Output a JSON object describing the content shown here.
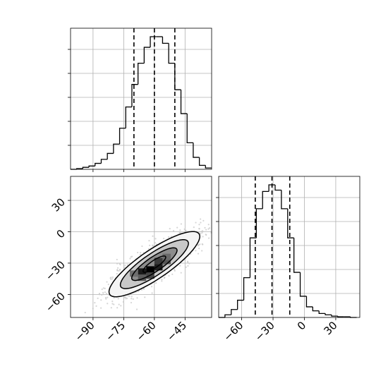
{
  "chart_data": [
    {
      "type": "histogram",
      "panel": "top-left",
      "x_tick_labels_shown": false,
      "xlim": [
        -101,
        -32
      ],
      "x_grid": [
        -90,
        -75,
        -60,
        -45
      ],
      "grid": true,
      "bin_edges": [
        -101,
        -98,
        -95,
        -92,
        -89,
        -86,
        -83,
        -80,
        -77,
        -74,
        -71,
        -68,
        -65,
        -62,
        -59,
        -56,
        -53,
        -50,
        -47,
        -44,
        -41,
        -38,
        -35,
        -32
      ],
      "counts": [
        0.0,
        0.005,
        0.015,
        0.025,
        0.045,
        0.075,
        0.12,
        0.19,
        0.31,
        0.47,
        0.64,
        0.8,
        0.92,
        1.0,
        1.0,
        0.95,
        0.8,
        0.6,
        0.42,
        0.2,
        0.09,
        0.03,
        0.01
      ],
      "quantiles": [
        -70,
        -60,
        -50
      ],
      "quantile_style": "dashed"
    },
    {
      "type": "scatter",
      "panel": "bottom-left",
      "subtype": "2d-histogram-with-contours",
      "xlim": [
        -101,
        -32
      ],
      "ylim": [
        -82,
        53
      ],
      "x_ticks": [
        "−90",
        "−75",
        "−60",
        "−45"
      ],
      "y_ticks": [
        "30",
        "0",
        "−30",
        "−60"
      ],
      "x_tick_values": [
        -90,
        -75,
        -60,
        -45
      ],
      "y_tick_values": [
        30,
        0,
        -30,
        -60
      ],
      "grid": true,
      "center": [
        -60,
        -31
      ],
      "contour_levels": 4,
      "points_color": "#c8c8c8",
      "density_colormap": [
        "#ffffff",
        "#b4b4b4",
        "#6e6e6e",
        "#000000"
      ]
    },
    {
      "type": "histogram",
      "panel": "bottom-right",
      "xlim": [
        -82,
        53
      ],
      "x_ticks": [
        "−60",
        "−30",
        "0",
        "30"
      ],
      "x_tick_values": [
        -60,
        -30,
        0,
        30
      ],
      "grid": true,
      "bin_edges": [
        -82,
        -76,
        -70,
        -64,
        -58,
        -52,
        -46,
        -40,
        -34,
        -28,
        -22,
        -16,
        -10,
        -4,
        2,
        8,
        14,
        20,
        26,
        32,
        38,
        44,
        50
      ],
      "counts": [
        0.0,
        0.02,
        0.06,
        0.13,
        0.3,
        0.6,
        0.82,
        0.95,
        1.0,
        0.96,
        0.82,
        0.6,
        0.34,
        0.16,
        0.08,
        0.05,
        0.03,
        0.02,
        0.01,
        0.005,
        0.005,
        0.0
      ],
      "quantiles": [
        -47,
        -31,
        -14
      ],
      "quantile_style": "dashed"
    }
  ]
}
